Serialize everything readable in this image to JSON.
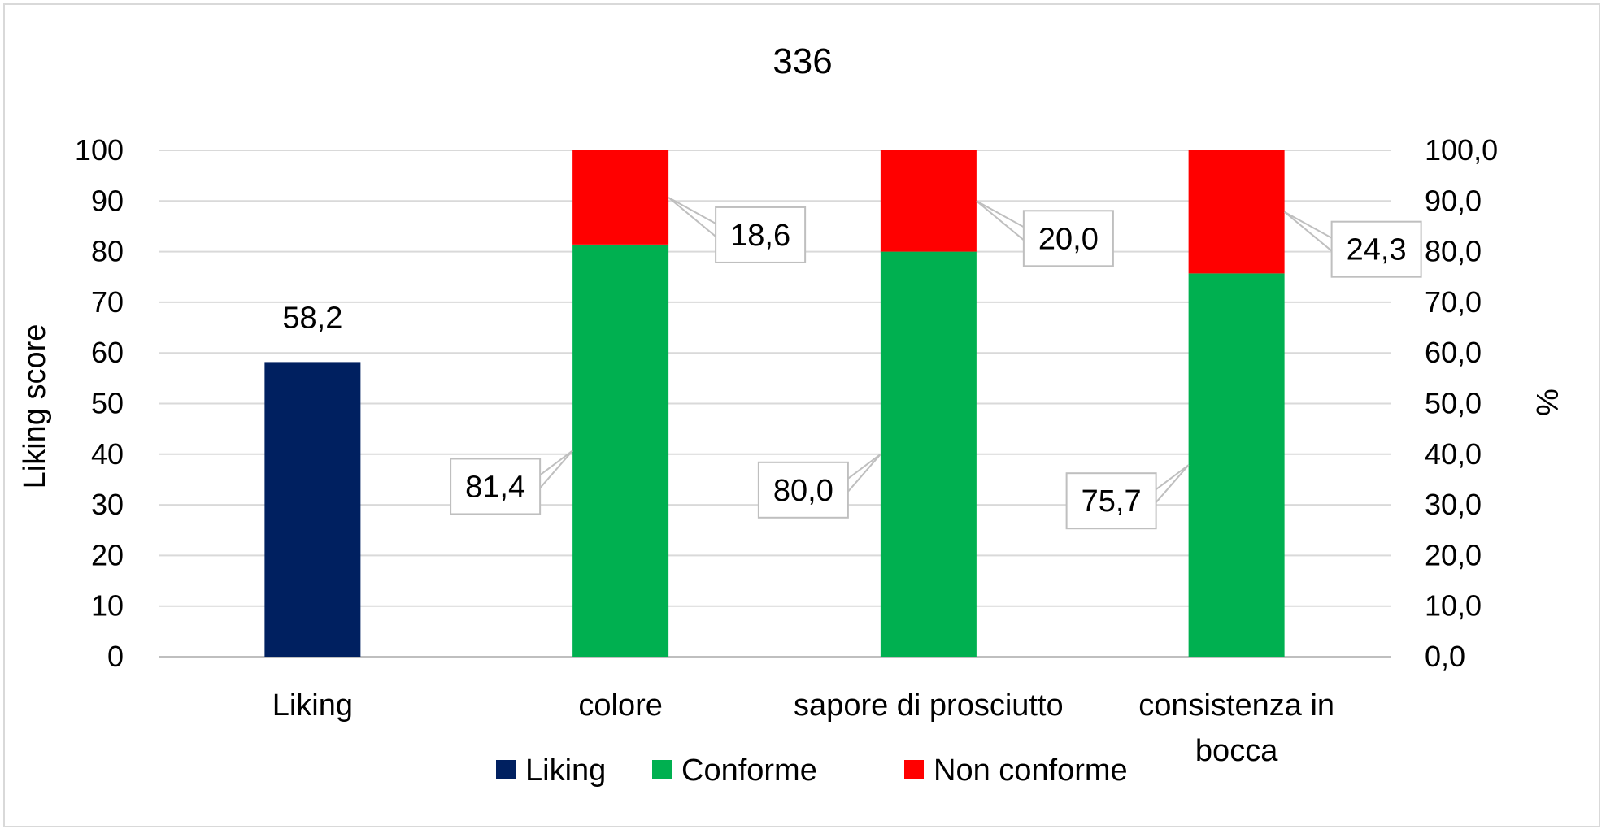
{
  "chart_data": {
    "type": "bar",
    "title": "336",
    "ylabel": "Liking score",
    "y2label": "%",
    "ylim": [
      0,
      100
    ],
    "y2lim": [
      0,
      100
    ],
    "yticks": [
      "0",
      "10",
      "20",
      "30",
      "40",
      "50",
      "60",
      "70",
      "80",
      "90",
      "100"
    ],
    "y2ticks": [
      "0,0",
      "10,0",
      "20,0",
      "30,0",
      "40,0",
      "50,0",
      "60,0",
      "70,0",
      "80,0",
      "90,0",
      "100,0"
    ],
    "categories": [
      "Liking",
      "colore",
      "sapore di prosciutto",
      "consistenza in bocca"
    ],
    "category_lines": [
      [
        "Liking"
      ],
      [
        "colore"
      ],
      [
        "sapore di prosciutto"
      ],
      [
        "consistenza in",
        "bocca"
      ]
    ],
    "grid": true,
    "legend_position": "bottom",
    "series": [
      {
        "name": "Liking",
        "color": "#002060",
        "axis": "primary",
        "values": [
          58.2,
          null,
          null,
          null
        ],
        "labels": [
          "58,2",
          "",
          "",
          ""
        ]
      },
      {
        "name": "Conforme",
        "color": "#00B050",
        "axis": "secondary",
        "values": [
          null,
          81.4,
          80.0,
          75.7
        ],
        "labels": [
          "",
          "81,4",
          "80,0",
          "75,7"
        ]
      },
      {
        "name": "Non conforme",
        "color": "#FF0000",
        "axis": "secondary",
        "values": [
          null,
          18.6,
          20.0,
          24.3
        ],
        "labels": [
          "",
          "18,6",
          "20,0",
          "24,3"
        ]
      }
    ]
  }
}
